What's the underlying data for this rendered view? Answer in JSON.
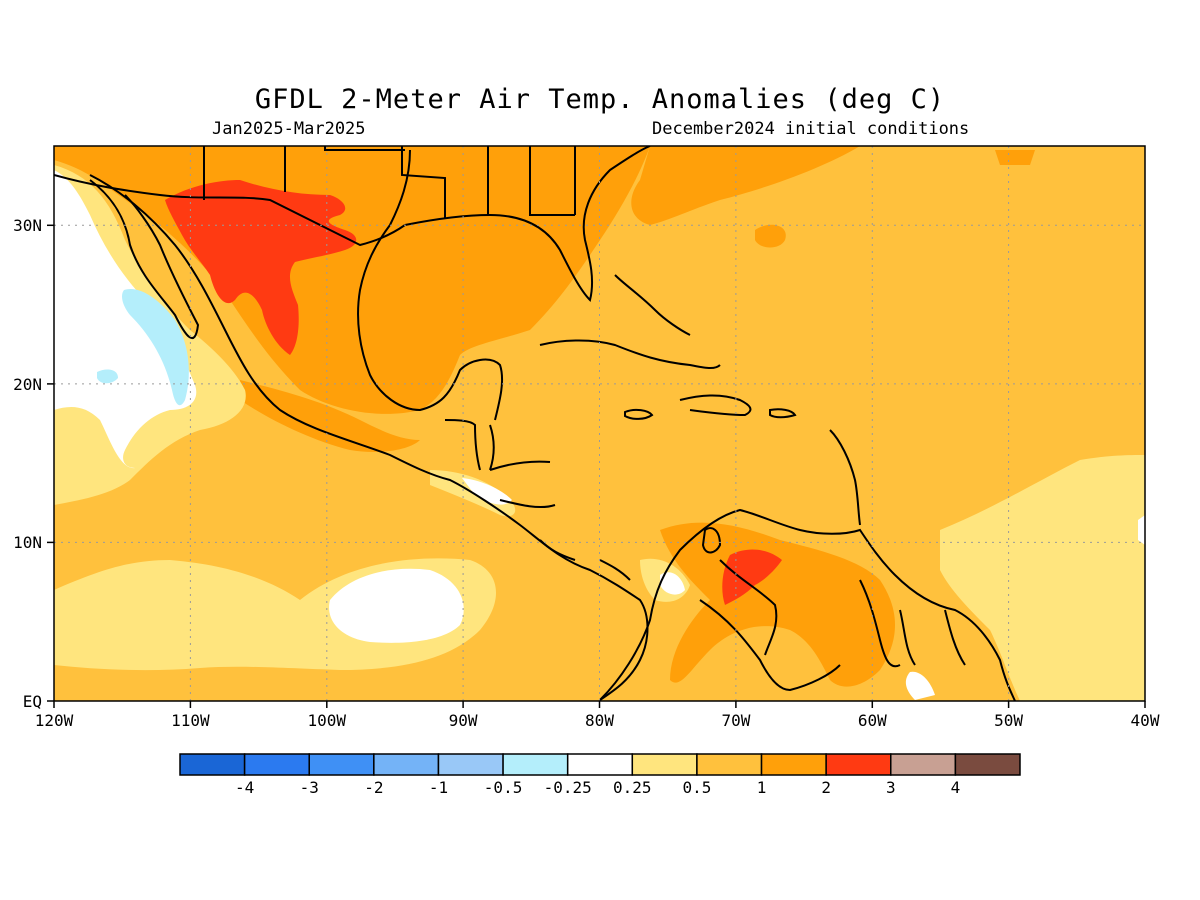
{
  "header": {
    "title": "GFDL 2-Meter Air Temp. Anomalies (deg C)",
    "period": "Jan2025-Mar2025",
    "initial": "December2024 initial conditions"
  },
  "map": {
    "region": "Gulf of Mexico / Caribbean / Central America",
    "lon_range": [
      -120,
      -40
    ],
    "lat_range": [
      0,
      35
    ],
    "grid": true,
    "lon_ticks": [
      "120W",
      "110W",
      "100W",
      "90W",
      "80W",
      "70W",
      "60W",
      "50W",
      "40W"
    ],
    "lat_ticks": [
      "EQ",
      "10N",
      "20N",
      "30N"
    ]
  },
  "colorbar": {
    "colors": [
      "#1a66d6",
      "#2b7af0",
      "#3f90f5",
      "#74b3f7",
      "#99c8f7",
      "#b4eefb",
      "#ffffff",
      "#ffe57e",
      "#ffc13d",
      "#ffa00a",
      "#ff3a12",
      "#c8a093",
      "#7a4b3f"
    ],
    "labels": [
      "-4",
      "-3",
      "-2",
      "-1",
      "-0.5",
      "-0.25",
      "0.25",
      "0.5",
      "1",
      "2",
      "3",
      "4"
    ]
  },
  "legend_colors": {
    "background_anomaly": "#ffc13d",
    "warm": "#ffa00a",
    "hot": "#ff3a12",
    "cool_weak": "#ffe57e",
    "neutral": "#ffffff",
    "cool": "#b4eefb"
  }
}
